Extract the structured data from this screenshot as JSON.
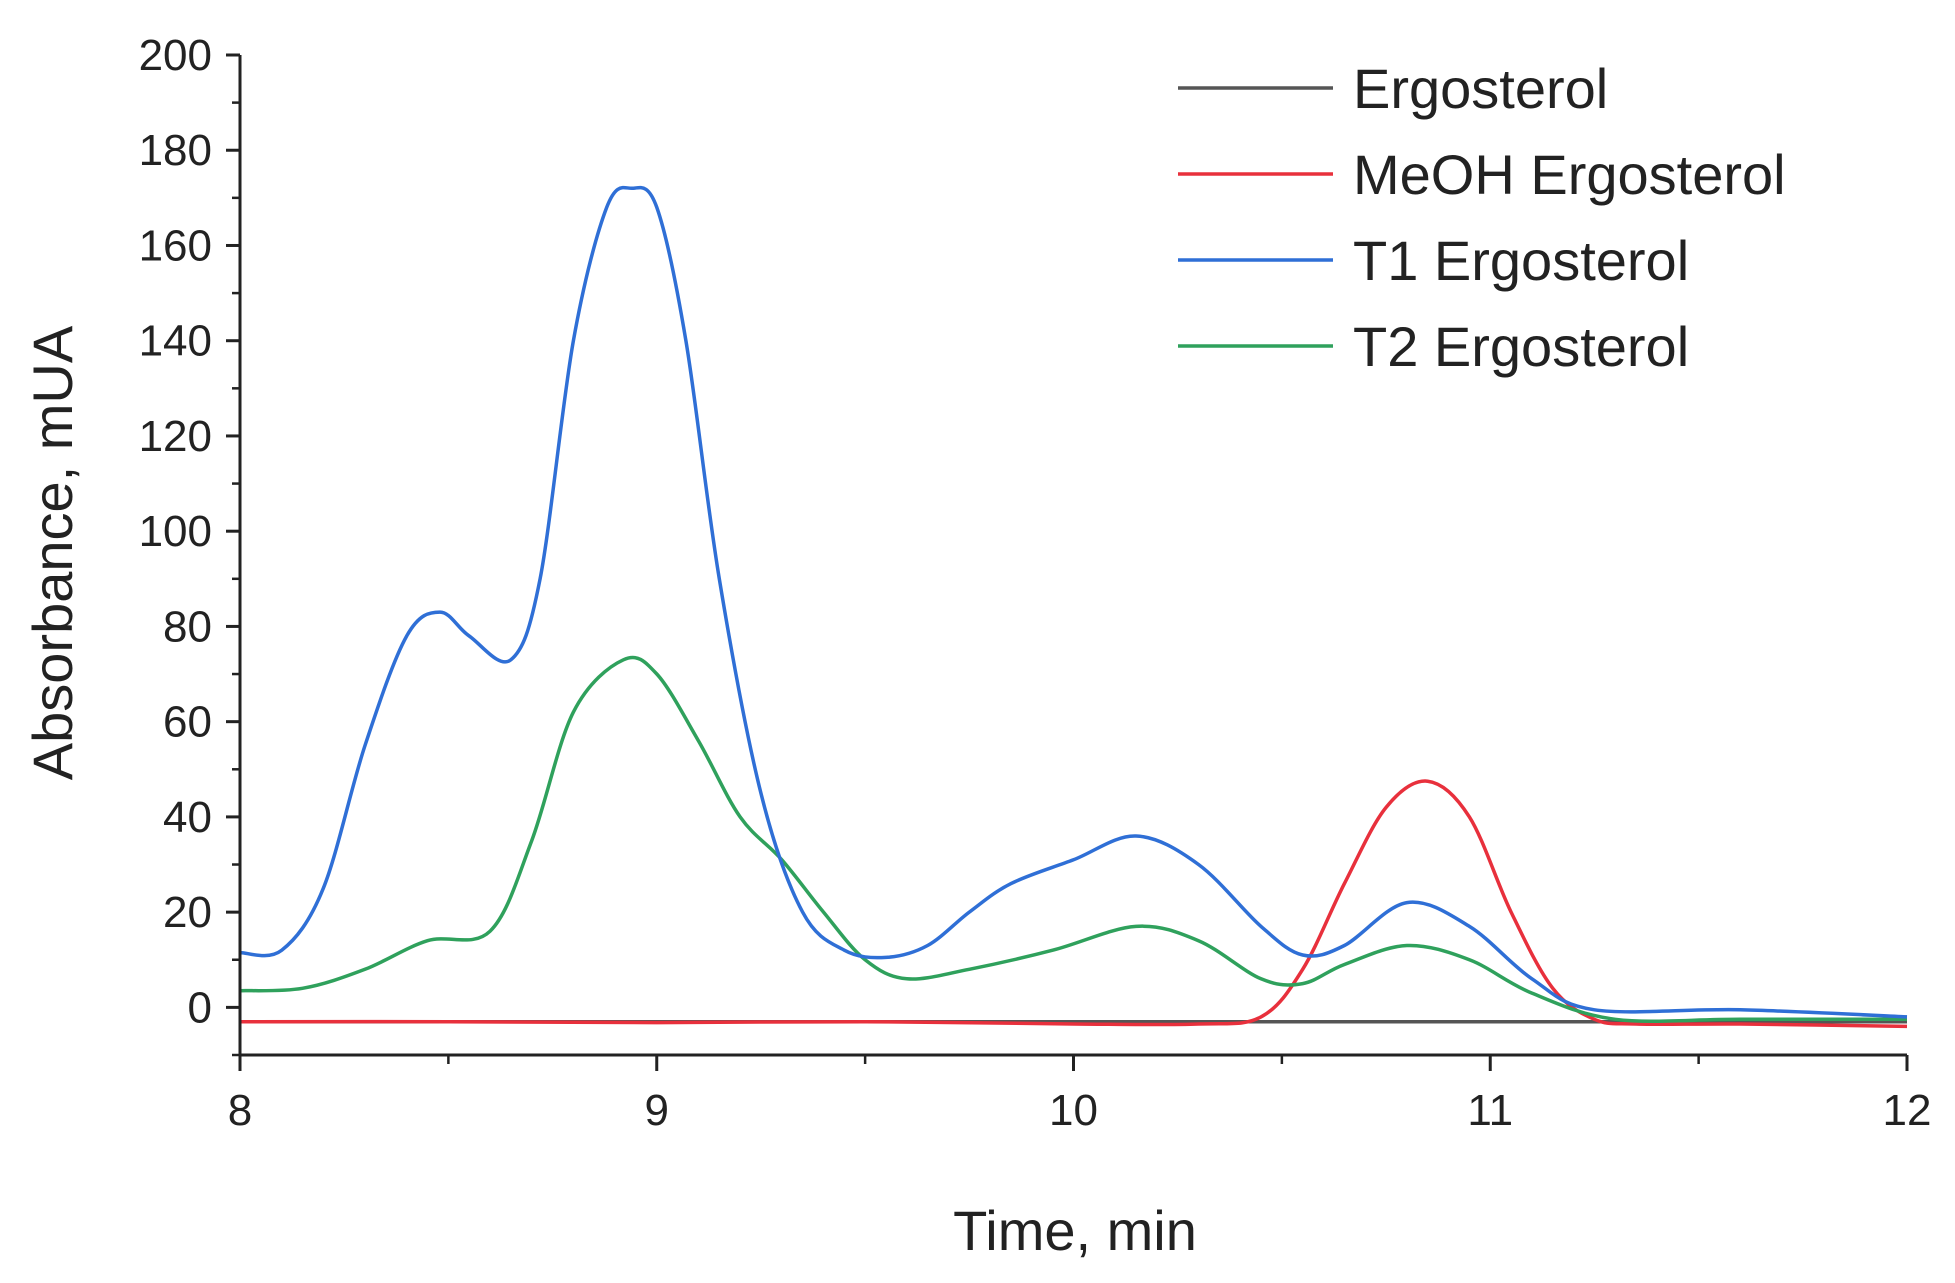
{
  "chart_data": {
    "type": "line",
    "title": "",
    "xlabel": "Time, min",
    "ylabel": "Absorbance, mUA",
    "xlim": [
      8,
      12
    ],
    "ylim": [
      -10,
      200
    ],
    "xticks": [
      8,
      9,
      10,
      11,
      12
    ],
    "yticks": [
      0,
      20,
      40,
      60,
      80,
      100,
      120,
      140,
      160,
      180,
      200
    ],
    "grid": false,
    "legend_position": "top-right",
    "series": [
      {
        "name": "Ergosterol",
        "color": "#555555",
        "x": [
          8.0,
          12.0
        ],
        "y": [
          -3.0,
          -3.0
        ]
      },
      {
        "name": "MeOH Ergosterol",
        "color": "#e8303c",
        "x": [
          8.0,
          8.5,
          9.0,
          9.5,
          10.0,
          10.3,
          10.45,
          10.55,
          10.65,
          10.75,
          10.85,
          10.95,
          11.05,
          11.15,
          11.25,
          11.35,
          11.6,
          12.0
        ],
        "y": [
          -3.0,
          -3.0,
          -3.2,
          -3.0,
          -3.5,
          -3.5,
          -2.0,
          8.0,
          26.0,
          42.0,
          47.5,
          40.0,
          20.0,
          4.0,
          -2.5,
          -3.5,
          -3.5,
          -4.0
        ]
      },
      {
        "name": "T1 Ergosterol",
        "color": "#2f6fd6",
        "x": [
          8.0,
          8.1,
          8.2,
          8.3,
          8.4,
          8.48,
          8.55,
          8.65,
          8.72,
          8.8,
          8.88,
          8.94,
          9.0,
          9.07,
          9.15,
          9.25,
          9.35,
          9.45,
          9.55,
          9.65,
          9.75,
          9.85,
          10.0,
          10.15,
          10.3,
          10.45,
          10.55,
          10.65,
          10.8,
          10.95,
          11.1,
          11.25,
          11.6,
          12.0
        ],
        "y": [
          11.5,
          12.0,
          25.0,
          55.0,
          78.0,
          83.0,
          78.0,
          73.0,
          90.0,
          140.0,
          168.0,
          172.0,
          168.0,
          140.0,
          90.0,
          45.0,
          20.0,
          12.0,
          10.5,
          13.0,
          20.0,
          26.0,
          31.0,
          36.0,
          30.0,
          17.0,
          11.0,
          13.0,
          22.0,
          17.0,
          6.0,
          -0.5,
          -0.5,
          -2.0
        ]
      },
      {
        "name": "T2 Ergosterol",
        "color": "#2fa15c",
        "x": [
          8.0,
          8.15,
          8.3,
          8.45,
          8.6,
          8.7,
          8.8,
          8.92,
          9.0,
          9.1,
          9.2,
          9.3,
          9.4,
          9.5,
          9.6,
          9.75,
          9.95,
          10.15,
          10.3,
          10.45,
          10.55,
          10.65,
          10.8,
          10.95,
          11.1,
          11.3,
          11.6,
          12.0
        ],
        "y": [
          3.5,
          4.0,
          8.0,
          14.0,
          16.0,
          35.0,
          62.0,
          73.0,
          70.0,
          56.0,
          40.0,
          31.0,
          20.0,
          10.0,
          6.0,
          8.0,
          12.0,
          17.0,
          14.0,
          6.0,
          5.0,
          9.0,
          13.0,
          10.0,
          3.0,
          -2.5,
          -2.5,
          -2.5
        ]
      }
    ]
  }
}
